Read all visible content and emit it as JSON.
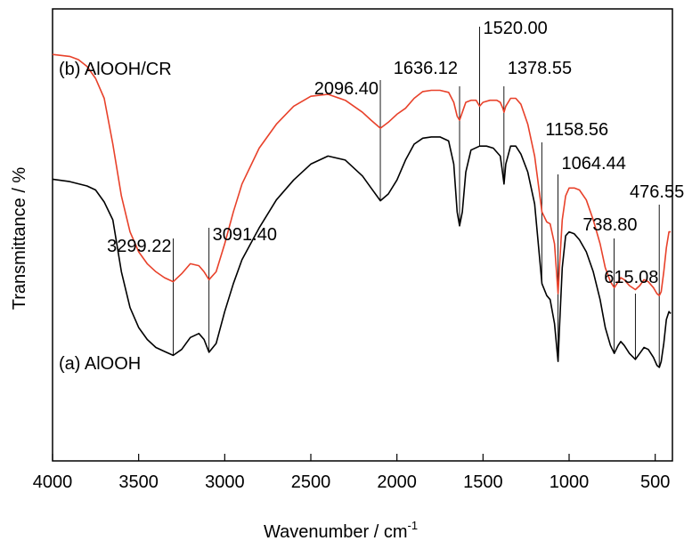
{
  "chart_data": {
    "type": "line",
    "xlabel": "Wavenumber / cm",
    "xlabel_sup": "-1",
    "ylabel": "Transmittance / %",
    "xlim": [
      4000,
      400
    ],
    "x_reversed": true,
    "y_ticks_shown": false,
    "grid": false,
    "legend": "none",
    "x_ticks": [
      4000,
      3500,
      3000,
      2500,
      2000,
      1500,
      1000,
      500
    ],
    "x_tick_labels": [
      "4000",
      "3500",
      "3000",
      "2500",
      "2000",
      "1500",
      "1000",
      "500"
    ],
    "series": [
      {
        "name": "(a) AlOOH",
        "color": "#000000",
        "points": [
          [
            4000,
            0.662
          ],
          [
            3900,
            0.656
          ],
          [
            3800,
            0.645
          ],
          [
            3750,
            0.635
          ],
          [
            3700,
            0.605
          ],
          [
            3650,
            0.56
          ],
          [
            3600,
            0.43
          ],
          [
            3550,
            0.34
          ],
          [
            3500,
            0.29
          ],
          [
            3450,
            0.26
          ],
          [
            3400,
            0.24
          ],
          [
            3350,
            0.23
          ],
          [
            3299,
            0.22
          ],
          [
            3250,
            0.235
          ],
          [
            3200,
            0.265
          ],
          [
            3150,
            0.275
          ],
          [
            3120,
            0.26
          ],
          [
            3091,
            0.228
          ],
          [
            3050,
            0.25
          ],
          [
            3000,
            0.33
          ],
          [
            2950,
            0.4
          ],
          [
            2900,
            0.46
          ],
          [
            2800,
            0.54
          ],
          [
            2700,
            0.61
          ],
          [
            2600,
            0.66
          ],
          [
            2500,
            0.7
          ],
          [
            2400,
            0.72
          ],
          [
            2300,
            0.71
          ],
          [
            2200,
            0.67
          ],
          [
            2150,
            0.64
          ],
          [
            2096,
            0.608
          ],
          [
            2050,
            0.625
          ],
          [
            2000,
            0.66
          ],
          [
            1950,
            0.71
          ],
          [
            1900,
            0.75
          ],
          [
            1850,
            0.765
          ],
          [
            1800,
            0.768
          ],
          [
            1750,
            0.768
          ],
          [
            1700,
            0.758
          ],
          [
            1670,
            0.7
          ],
          [
            1650,
            0.58
          ],
          [
            1636,
            0.545
          ],
          [
            1620,
            0.58
          ],
          [
            1600,
            0.68
          ],
          [
            1570,
            0.735
          ],
          [
            1520,
            0.745
          ],
          [
            1480,
            0.745
          ],
          [
            1440,
            0.74
          ],
          [
            1400,
            0.72
          ],
          [
            1390,
            0.69
          ],
          [
            1378,
            0.65
          ],
          [
            1368,
            0.7
          ],
          [
            1340,
            0.745
          ],
          [
            1310,
            0.745
          ],
          [
            1280,
            0.725
          ],
          [
            1240,
            0.68
          ],
          [
            1200,
            0.6
          ],
          [
            1158,
            0.4
          ],
          [
            1130,
            0.37
          ],
          [
            1110,
            0.36
          ],
          [
            1085,
            0.3
          ],
          [
            1064,
            0.205
          ],
          [
            1055,
            0.3
          ],
          [
            1040,
            0.44
          ],
          [
            1020,
            0.52
          ],
          [
            1000,
            0.53
          ],
          [
            970,
            0.525
          ],
          [
            940,
            0.51
          ],
          [
            900,
            0.48
          ],
          [
            860,
            0.43
          ],
          [
            820,
            0.36
          ],
          [
            790,
            0.29
          ],
          [
            760,
            0.245
          ],
          [
            738,
            0.225
          ],
          [
            715,
            0.245
          ],
          [
            700,
            0.255
          ],
          [
            680,
            0.245
          ],
          [
            650,
            0.225
          ],
          [
            615,
            0.21
          ],
          [
            590,
            0.225
          ],
          [
            565,
            0.24
          ],
          [
            540,
            0.235
          ],
          [
            510,
            0.215
          ],
          [
            490,
            0.195
          ],
          [
            476,
            0.19
          ],
          [
            465,
            0.205
          ],
          [
            450,
            0.25
          ],
          [
            435,
            0.31
          ],
          [
            420,
            0.33
          ],
          [
            410,
            0.325
          ]
        ]
      },
      {
        "name": "(b) AlOOH/CR",
        "color": "#e8412a",
        "points": [
          [
            4000,
            0.975
          ],
          [
            3900,
            0.97
          ],
          [
            3850,
            0.962
          ],
          [
            3800,
            0.945
          ],
          [
            3750,
            0.915
          ],
          [
            3700,
            0.865
          ],
          [
            3650,
            0.75
          ],
          [
            3600,
            0.62
          ],
          [
            3550,
            0.53
          ],
          [
            3500,
            0.48
          ],
          [
            3450,
            0.45
          ],
          [
            3400,
            0.43
          ],
          [
            3350,
            0.415
          ],
          [
            3299,
            0.405
          ],
          [
            3250,
            0.425
          ],
          [
            3200,
            0.45
          ],
          [
            3150,
            0.445
          ],
          [
            3120,
            0.43
          ],
          [
            3091,
            0.41
          ],
          [
            3050,
            0.43
          ],
          [
            3000,
            0.5
          ],
          [
            2950,
            0.58
          ],
          [
            2900,
            0.65
          ],
          [
            2800,
            0.74
          ],
          [
            2700,
            0.8
          ],
          [
            2600,
            0.845
          ],
          [
            2500,
            0.87
          ],
          [
            2400,
            0.875
          ],
          [
            2300,
            0.86
          ],
          [
            2200,
            0.83
          ],
          [
            2150,
            0.81
          ],
          [
            2096,
            0.79
          ],
          [
            2050,
            0.805
          ],
          [
            2000,
            0.825
          ],
          [
            1950,
            0.84
          ],
          [
            1900,
            0.865
          ],
          [
            1850,
            0.882
          ],
          [
            1800,
            0.885
          ],
          [
            1750,
            0.885
          ],
          [
            1700,
            0.88
          ],
          [
            1670,
            0.855
          ],
          [
            1650,
            0.82
          ],
          [
            1636,
            0.81
          ],
          [
            1620,
            0.83
          ],
          [
            1600,
            0.855
          ],
          [
            1570,
            0.86
          ],
          [
            1540,
            0.86
          ],
          [
            1520,
            0.845
          ],
          [
            1500,
            0.855
          ],
          [
            1460,
            0.86
          ],
          [
            1420,
            0.86
          ],
          [
            1400,
            0.855
          ],
          [
            1385,
            0.84
          ],
          [
            1378,
            0.83
          ],
          [
            1368,
            0.845
          ],
          [
            1340,
            0.865
          ],
          [
            1310,
            0.865
          ],
          [
            1280,
            0.85
          ],
          [
            1240,
            0.8
          ],
          [
            1200,
            0.72
          ],
          [
            1158,
            0.58
          ],
          [
            1130,
            0.555
          ],
          [
            1110,
            0.55
          ],
          [
            1085,
            0.5
          ],
          [
            1064,
            0.375
          ],
          [
            1055,
            0.45
          ],
          [
            1040,
            0.56
          ],
          [
            1020,
            0.62
          ],
          [
            1000,
            0.64
          ],
          [
            970,
            0.64
          ],
          [
            940,
            0.635
          ],
          [
            900,
            0.61
          ],
          [
            860,
            0.56
          ],
          [
            820,
            0.5
          ],
          [
            790,
            0.44
          ],
          [
            760,
            0.405
          ],
          [
            738,
            0.39
          ],
          [
            715,
            0.405
          ],
          [
            700,
            0.415
          ],
          [
            680,
            0.41
          ],
          [
            650,
            0.395
          ],
          [
            615,
            0.385
          ],
          [
            590,
            0.395
          ],
          [
            565,
            0.41
          ],
          [
            540,
            0.405
          ],
          [
            510,
            0.39
          ],
          [
            490,
            0.375
          ],
          [
            476,
            0.37
          ],
          [
            465,
            0.38
          ],
          [
            450,
            0.43
          ],
          [
            435,
            0.49
          ],
          [
            420,
            0.53
          ],
          [
            410,
            0.53
          ]
        ]
      }
    ],
    "series_labels": [
      "(b) AlOOH/CR",
      "(a) AlOOH"
    ],
    "peaks": [
      {
        "label": "3299.22",
        "x": 3299.22
      },
      {
        "label": "3091.40",
        "x": 3091.4
      },
      {
        "label": "2096.40",
        "x": 2096.4
      },
      {
        "label": "1636.12",
        "x": 1636.12
      },
      {
        "label": "1520.00",
        "x": 1520.0
      },
      {
        "label": "1378.55",
        "x": 1378.55
      },
      {
        "label": "1158.56",
        "x": 1158.56
      },
      {
        "label": "1064.44",
        "x": 1064.44
      },
      {
        "label": "738.80",
        "x": 738.8
      },
      {
        "label": "615.08",
        "x": 615.08
      },
      {
        "label": "476.55",
        "x": 476.55
      }
    ]
  }
}
